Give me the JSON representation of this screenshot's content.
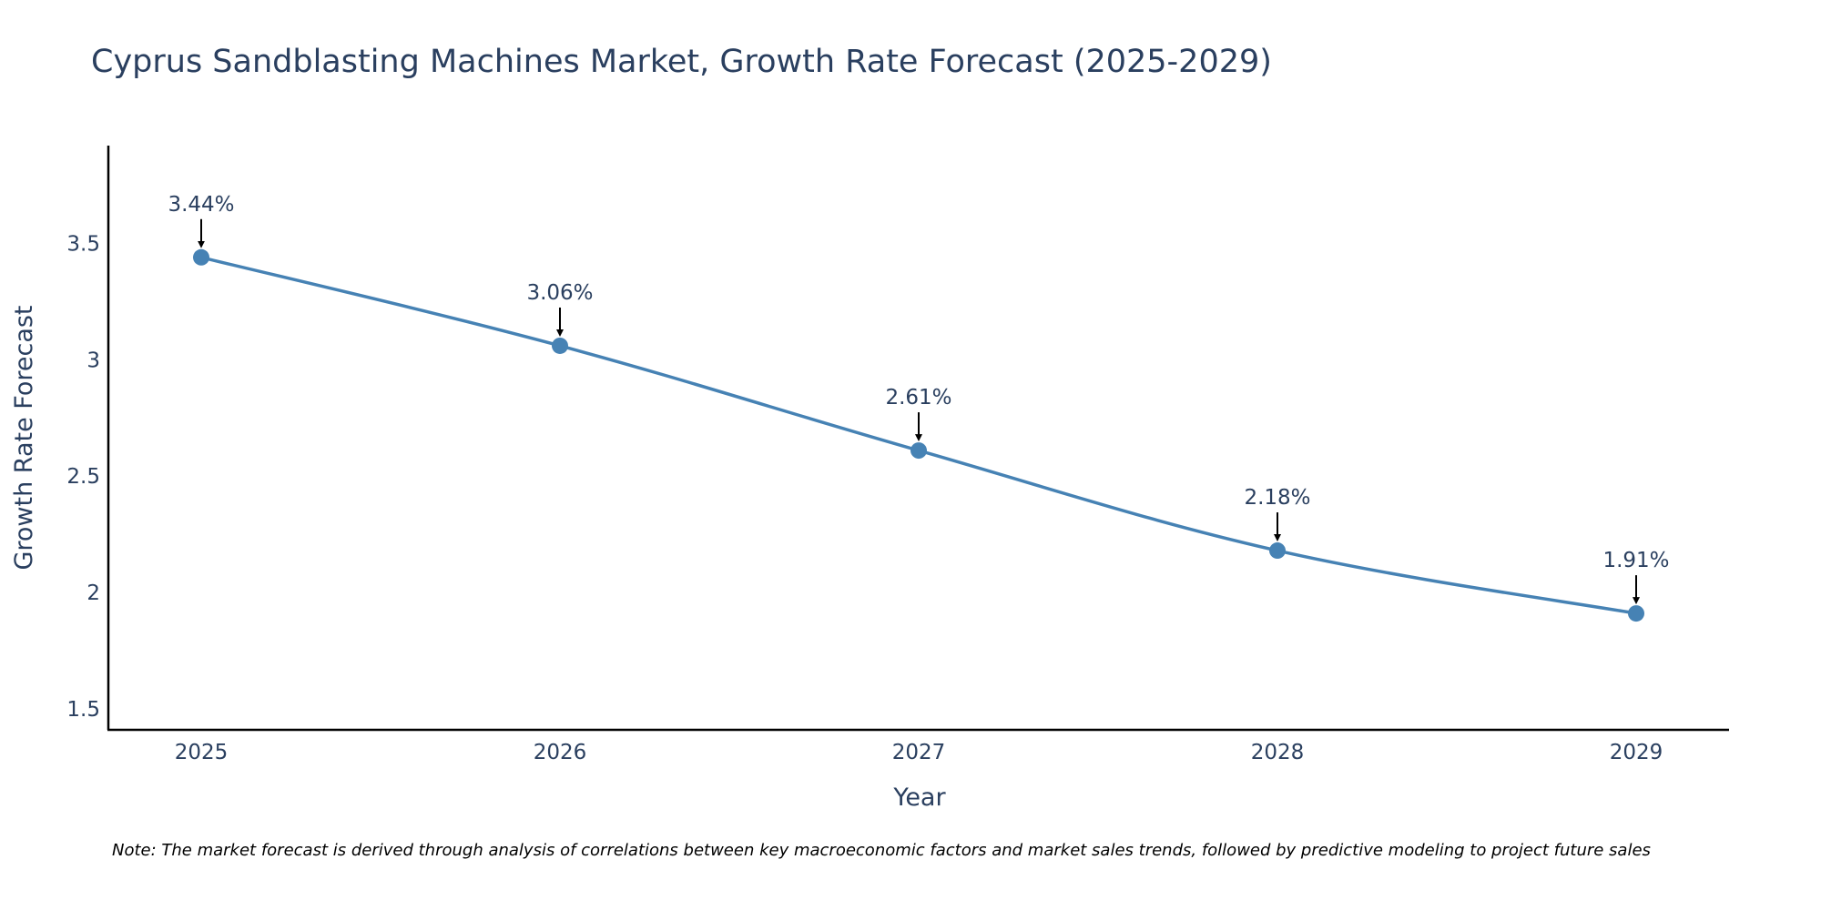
{
  "chart_data": {
    "type": "line",
    "title": "Cyprus Sandblasting Machines Market, Growth Rate Forecast (2025-2029)",
    "xlabel": "Year",
    "ylabel": "Growth Rate Forecast",
    "categories": [
      "2025",
      "2026",
      "2027",
      "2028",
      "2029"
    ],
    "values": [
      3.44,
      3.06,
      2.61,
      2.18,
      1.91
    ],
    "data_labels": [
      "3.44%",
      "3.06%",
      "2.61%",
      "2.18%",
      "1.91%"
    ],
    "yticks": [
      1.5,
      2,
      2.5,
      3,
      3.5
    ],
    "ytick_labels": [
      "1.5",
      "2",
      "2.5",
      "3",
      "3.5"
    ],
    "ylim": [
      1.41,
      3.92
    ],
    "grid": false,
    "legend": "none",
    "line_color": "#4682b4",
    "annotation_color": "#000000",
    "note": "Note: The market forecast is derived through analysis of correlations between key macroeconomic factors and market sales trends, followed by predictive modeling to project future sales"
  }
}
